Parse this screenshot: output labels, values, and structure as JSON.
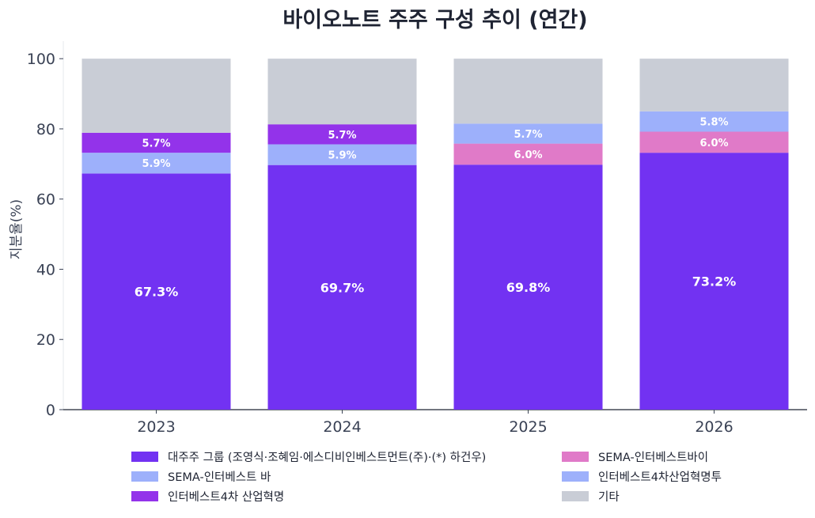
{
  "chart_data": {
    "type": "bar",
    "stacked": true,
    "title": "바이오노트 주주 구성 추이 (연간)",
    "xlabel": "",
    "ylabel": "지분율(%)",
    "ylim": [
      0,
      105
    ],
    "yticks": [
      0,
      20,
      40,
      60,
      80,
      100
    ],
    "categories": [
      "2023",
      "2024",
      "2025",
      "2026"
    ],
    "grid": false,
    "legend_position": "bottom",
    "series": [
      {
        "name": "대주주 그룹 (조영식·조혜임·에스디비인베스트먼트(주)·(*) 하건우)",
        "color": "#7232f2",
        "values": [
          67.3,
          69.7,
          69.8,
          73.2
        ],
        "labels": [
          "67.3%",
          "69.7%",
          "69.8%",
          "73.2%"
        ]
      },
      {
        "name": "SEMA-인터베스트 바",
        "color": "#9db0fb",
        "values": [
          5.9,
          5.9,
          0,
          0
        ],
        "labels": [
          "5.9%",
          "5.9%",
          "",
          ""
        ]
      },
      {
        "name": "SEMA-인터베스트바이",
        "color": "#e07ac8",
        "values": [
          0,
          0,
          6.0,
          6.0
        ],
        "labels": [
          "",
          "",
          "6.0%",
          "6.0%"
        ]
      },
      {
        "name": "인터베스트4차산업혁명투",
        "color": "#9db0fb",
        "values": [
          0,
          0,
          5.7,
          5.8
        ],
        "labels": [
          "",
          "",
          "5.7%",
          "5.8%"
        ]
      },
      {
        "name": "인터베스트4차 산업혁명",
        "color": "#9333ea",
        "values": [
          5.7,
          5.7,
          0,
          0
        ],
        "labels": [
          "5.7%",
          "5.7%",
          "",
          ""
        ]
      },
      {
        "name": "기타",
        "color": "#c9cdd6",
        "values": [
          21.1,
          18.7,
          18.5,
          15.0
        ],
        "labels": [
          "",
          "",
          "",
          ""
        ]
      }
    ],
    "legend_order": [
      0,
      2,
      1,
      3,
      4,
      5
    ]
  }
}
